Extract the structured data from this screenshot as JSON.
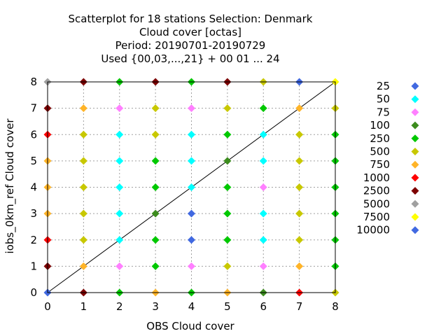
{
  "chart_data": {
    "type": "scatter",
    "title": [
      "Scatterplot for   18 stations Selection: Denmark",
      "Cloud cover [octas]",
      "Period: 20190701-20190729",
      "Used {00,03,...,21} + 00 01 ... 24"
    ],
    "xlabel": "OBS Cloud cover",
    "ylabel": "iobs_0km_ref Cloud cover",
    "xlim": [
      0,
      8
    ],
    "ylim": [
      0,
      8
    ],
    "xticks": [
      "0",
      "1",
      "2",
      "3",
      "4",
      "5",
      "6",
      "7",
      "8"
    ],
    "yticks": [
      "0",
      "1",
      "2",
      "3",
      "4",
      "5",
      "6",
      "7",
      "8"
    ],
    "grid": true,
    "diagonal": true,
    "legend_position": "right",
    "legend": [
      {
        "label": "25",
        "color": "#4169e1"
      },
      {
        "label": "50",
        "color": "#00ffff"
      },
      {
        "label": "75",
        "color": "#ff80ff"
      },
      {
        "label": "100",
        "color": "#3c8c1e"
      },
      {
        "label": "250",
        "color": "#00c800"
      },
      {
        "label": "500",
        "color": "#c8c800"
      },
      {
        "label": "750",
        "color": "#ffb428"
      },
      {
        "label": "1000",
        "color": "#ff0000"
      },
      {
        "label": "2500",
        "color": "#7d0000"
      },
      {
        "label": "5000",
        "color": "#a0a0a0"
      },
      {
        "label": "7500",
        "color": "#ffff00"
      },
      {
        "label": "10000",
        "color": "#4169e1"
      }
    ],
    "points": [
      {
        "x": 0,
        "y": 0,
        "c": "#4169e1"
      },
      {
        "x": 0,
        "y": 1,
        "c": "#7d0000"
      },
      {
        "x": 0,
        "y": 2,
        "c": "#ff0000"
      },
      {
        "x": 0,
        "y": 3,
        "c": "#ffb428"
      },
      {
        "x": 0,
        "y": 4,
        "c": "#ffb428"
      },
      {
        "x": 0,
        "y": 5,
        "c": "#ffb428"
      },
      {
        "x": 0,
        "y": 6,
        "c": "#ff0000"
      },
      {
        "x": 0,
        "y": 7,
        "c": "#7d0000"
      },
      {
        "x": 0,
        "y": 8,
        "c": "#a0a0a0"
      },
      {
        "x": 1,
        "y": 0,
        "c": "#7d0000"
      },
      {
        "x": 1,
        "y": 1,
        "c": "#ffb428"
      },
      {
        "x": 1,
        "y": 2,
        "c": "#c8c800"
      },
      {
        "x": 1,
        "y": 3,
        "c": "#c8c800"
      },
      {
        "x": 1,
        "y": 4,
        "c": "#c8c800"
      },
      {
        "x": 1,
        "y": 5,
        "c": "#c8c800"
      },
      {
        "x": 1,
        "y": 6,
        "c": "#c8c800"
      },
      {
        "x": 1,
        "y": 7,
        "c": "#ffb428"
      },
      {
        "x": 1,
        "y": 8,
        "c": "#7d0000"
      },
      {
        "x": 2,
        "y": 0,
        "c": "#00c800"
      },
      {
        "x": 2,
        "y": 1,
        "c": "#ff80ff"
      },
      {
        "x": 2,
        "y": 2,
        "c": "#00ffff"
      },
      {
        "x": 2,
        "y": 3,
        "c": "#00ffff"
      },
      {
        "x": 2,
        "y": 4,
        "c": "#00ffff"
      },
      {
        "x": 2,
        "y": 5,
        "c": "#00ffff"
      },
      {
        "x": 2,
        "y": 6,
        "c": "#00ffff"
      },
      {
        "x": 2,
        "y": 7,
        "c": "#ff80ff"
      },
      {
        "x": 2,
        "y": 8,
        "c": "#00c800"
      },
      {
        "x": 3,
        "y": 0,
        "c": "#ffb428"
      },
      {
        "x": 3,
        "y": 1,
        "c": "#00c800"
      },
      {
        "x": 3,
        "y": 2,
        "c": "#00c800"
      },
      {
        "x": 3,
        "y": 3,
        "c": "#3c8c1e"
      },
      {
        "x": 3,
        "y": 4,
        "c": "#00c800"
      },
      {
        "x": 3,
        "y": 5,
        "c": "#00c800"
      },
      {
        "x": 3,
        "y": 6,
        "c": "#c8c800"
      },
      {
        "x": 3,
        "y": 7,
        "c": "#c8c800"
      },
      {
        "x": 3,
        "y": 8,
        "c": "#7d0000"
      },
      {
        "x": 4,
        "y": 0,
        "c": "#00c800"
      },
      {
        "x": 4,
        "y": 1,
        "c": "#ff80ff"
      },
      {
        "x": 4,
        "y": 2,
        "c": "#4169e1"
      },
      {
        "x": 4,
        "y": 3,
        "c": "#4169e1"
      },
      {
        "x": 4,
        "y": 4,
        "c": "#00ffff"
      },
      {
        "x": 4,
        "y": 5,
        "c": "#00ffff"
      },
      {
        "x": 4,
        "y": 6,
        "c": "#00ffff"
      },
      {
        "x": 4,
        "y": 7,
        "c": "#ff80ff"
      },
      {
        "x": 4,
        "y": 8,
        "c": "#00c800"
      },
      {
        "x": 5,
        "y": 0,
        "c": "#ffb428"
      },
      {
        "x": 5,
        "y": 1,
        "c": "#c8c800"
      },
      {
        "x": 5,
        "y": 2,
        "c": "#00c800"
      },
      {
        "x": 5,
        "y": 3,
        "c": "#00c800"
      },
      {
        "x": 5,
        "y": 4,
        "c": "#00c800"
      },
      {
        "x": 5,
        "y": 5,
        "c": "#3c8c1e"
      },
      {
        "x": 5,
        "y": 6,
        "c": "#00c800"
      },
      {
        "x": 5,
        "y": 7,
        "c": "#c8c800"
      },
      {
        "x": 5,
        "y": 8,
        "c": "#7d0000"
      },
      {
        "x": 6,
        "y": 0,
        "c": "#3c8c1e"
      },
      {
        "x": 6,
        "y": 1,
        "c": "#ff80ff"
      },
      {
        "x": 6,
        "y": 2,
        "c": "#00ffff"
      },
      {
        "x": 6,
        "y": 3,
        "c": "#00ffff"
      },
      {
        "x": 6,
        "y": 4,
        "c": "#ff80ff"
      },
      {
        "x": 6,
        "y": 5,
        "c": "#00ffff"
      },
      {
        "x": 6,
        "y": 6,
        "c": "#00ffff"
      },
      {
        "x": 6,
        "y": 7,
        "c": "#00c800"
      },
      {
        "x": 6,
        "y": 8,
        "c": "#c8c800"
      },
      {
        "x": 7,
        "y": 0,
        "c": "#ff0000"
      },
      {
        "x": 7,
        "y": 1,
        "c": "#ffb428"
      },
      {
        "x": 7,
        "y": 2,
        "c": "#c8c800"
      },
      {
        "x": 7,
        "y": 3,
        "c": "#c8c800"
      },
      {
        "x": 7,
        "y": 4,
        "c": "#c8c800"
      },
      {
        "x": 7,
        "y": 5,
        "c": "#c8c800"
      },
      {
        "x": 7,
        "y": 6,
        "c": "#c8c800"
      },
      {
        "x": 7,
        "y": 7,
        "c": "#ffb428"
      },
      {
        "x": 7,
        "y": 8,
        "c": "#4169e1"
      },
      {
        "x": 8,
        "y": 0,
        "c": "#c8c800"
      },
      {
        "x": 8,
        "y": 1,
        "c": "#00c800"
      },
      {
        "x": 8,
        "y": 2,
        "c": "#00c800"
      },
      {
        "x": 8,
        "y": 3,
        "c": "#00c800"
      },
      {
        "x": 8,
        "y": 4,
        "c": "#00c800"
      },
      {
        "x": 8,
        "y": 5,
        "c": "#00c800"
      },
      {
        "x": 8,
        "y": 6,
        "c": "#00c800"
      },
      {
        "x": 8,
        "y": 7,
        "c": "#c8c800"
      },
      {
        "x": 8,
        "y": 8,
        "c": "#ffff00"
      }
    ]
  }
}
